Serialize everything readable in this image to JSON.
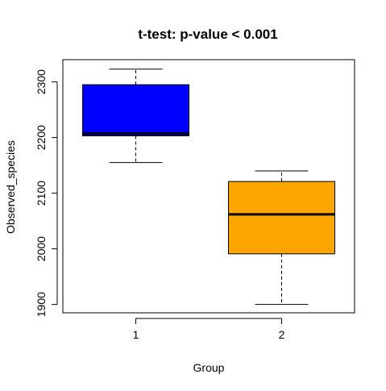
{
  "chart_data": {
    "type": "box",
    "title": "t-test: p-value < 0.001",
    "xlabel": "Group",
    "ylabel": "Observed_species",
    "categories": [
      "1",
      "2"
    ],
    "yticks": [
      1900,
      2000,
      2100,
      2200,
      2300
    ],
    "ylim": [
      1885,
      2340
    ],
    "boxes": [
      {
        "category": "1",
        "min": 2155,
        "q1": 2203,
        "median": 2207,
        "q3": 2295,
        "max": 2323,
        "color": "#0000FF"
      },
      {
        "category": "2",
        "min": 1900,
        "q1": 1991,
        "median": 2062,
        "q3": 2121,
        "max": 2140,
        "color": "#FFA500"
      }
    ],
    "grid": false
  }
}
